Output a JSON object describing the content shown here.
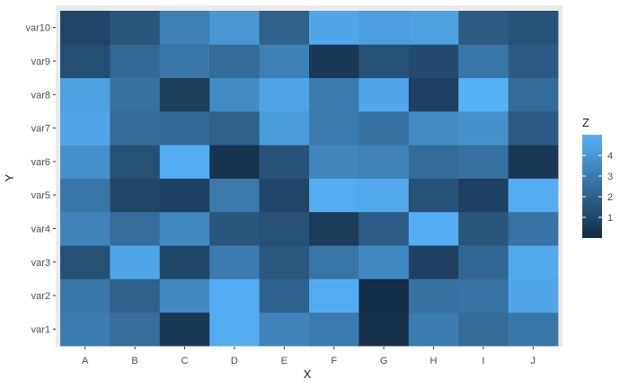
{
  "chart_data": {
    "type": "heatmap",
    "title": "",
    "xlabel": "X",
    "ylabel": "Y",
    "x_categories": [
      "A",
      "B",
      "C",
      "D",
      "E",
      "F",
      "G",
      "H",
      "I",
      "J"
    ],
    "y_categories": [
      "var1",
      "var2",
      "var3",
      "var4",
      "var5",
      "var6",
      "var7",
      "var8",
      "var9",
      "var10"
    ],
    "z": [
      [
        3.0,
        2.5,
        0.5,
        4.8,
        3.3,
        3.0,
        0.2,
        3.0,
        2.4,
        2.8
      ],
      [
        2.8,
        2.0,
        3.5,
        4.9,
        2.1,
        4.8,
        0.1,
        2.6,
        2.7,
        4.6
      ],
      [
        1.4,
        4.5,
        1.0,
        3.0,
        1.7,
        2.8,
        3.5,
        0.8,
        2.2,
        4.7
      ],
      [
        3.3,
        2.5,
        3.5,
        1.6,
        1.4,
        0.6,
        1.9,
        4.9,
        1.6,
        2.7
      ],
      [
        2.8,
        1.0,
        0.8,
        2.9,
        1.0,
        4.8,
        4.7,
        1.5,
        0.8,
        4.8
      ],
      [
        3.8,
        1.4,
        4.8,
        0.3,
        1.5,
        3.4,
        3.3,
        2.4,
        2.6,
        0.5
      ],
      [
        4.6,
        2.4,
        2.3,
        2.0,
        4.2,
        3.0,
        2.6,
        3.6,
        3.8,
        1.8
      ],
      [
        4.4,
        2.6,
        0.7,
        3.6,
        4.5,
        3.0,
        4.6,
        0.8,
        5.0,
        2.4
      ],
      [
        1.3,
        2.3,
        2.8,
        2.4,
        3.2,
        0.5,
        1.4,
        1.2,
        2.8,
        1.8
      ],
      [
        1.0,
        1.6,
        3.2,
        4.0,
        2.0,
        4.6,
        4.3,
        4.4,
        1.8,
        1.5
      ]
    ],
    "zlim": [
      0,
      5
    ],
    "colorscale": {
      "low": "#132B43",
      "high": "#56B1F7"
    },
    "legend": {
      "title": "Z",
      "breaks": [
        1,
        2,
        3,
        4
      ],
      "position": "right"
    },
    "panel_background": "#EBEBEB",
    "grid": true
  }
}
